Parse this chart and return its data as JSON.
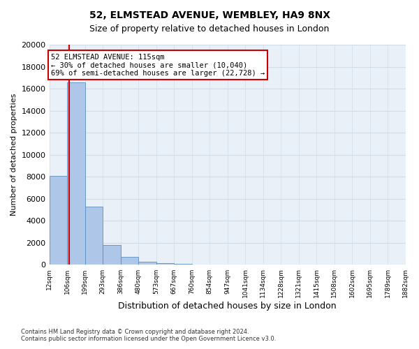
{
  "title1": "52, ELMSTEAD AVENUE, WEMBLEY, HA9 8NX",
  "title2": "Size of property relative to detached houses in London",
  "xlabel": "Distribution of detached houses by size in London",
  "ylabel": "Number of detached properties",
  "annotation_line1": "52 ELMSTEAD AVENUE: 115sqm",
  "annotation_line2": "← 30% of detached houses are smaller (10,040)",
  "annotation_line3": "69% of semi-detached houses are larger (22,728) →",
  "footnote1": "Contains HM Land Registry data © Crown copyright and database right 2024.",
  "footnote2": "Contains public sector information licensed under the Open Government Licence v3.0.",
  "property_size": 115,
  "bar_edges": [
    12,
    106,
    199,
    293,
    386,
    480,
    573,
    667,
    760,
    854,
    947,
    1041,
    1134,
    1228,
    1321,
    1415,
    1508,
    1602,
    1695,
    1789,
    1882
  ],
  "bar_heights": [
    8100,
    16600,
    5300,
    1800,
    700,
    300,
    175,
    100,
    0,
    0,
    0,
    0,
    0,
    0,
    0,
    0,
    0,
    0,
    0,
    0
  ],
  "bar_color": "#aec6e8",
  "bar_edge_color": "#5a8fc0",
  "vline_color": "#cc0000",
  "annotation_box_edge_color": "#cc0000",
  "grid_color": "#d0dce8",
  "background_color": "#eaf0f8",
  "ylim": [
    0,
    20000
  ],
  "yticks": [
    0,
    2000,
    4000,
    6000,
    8000,
    10000,
    12000,
    14000,
    16000,
    18000,
    20000
  ],
  "tick_labels": [
    "12sqm",
    "106sqm",
    "199sqm",
    "293sqm",
    "386sqm",
    "480sqm",
    "573sqm",
    "667sqm",
    "760sqm",
    "854sqm",
    "947sqm",
    "1041sqm",
    "1134sqm",
    "1228sqm",
    "1321sqm",
    "1415sqm",
    "1508sqm",
    "1602sqm",
    "1695sqm",
    "1789sqm",
    "1882sqm"
  ]
}
